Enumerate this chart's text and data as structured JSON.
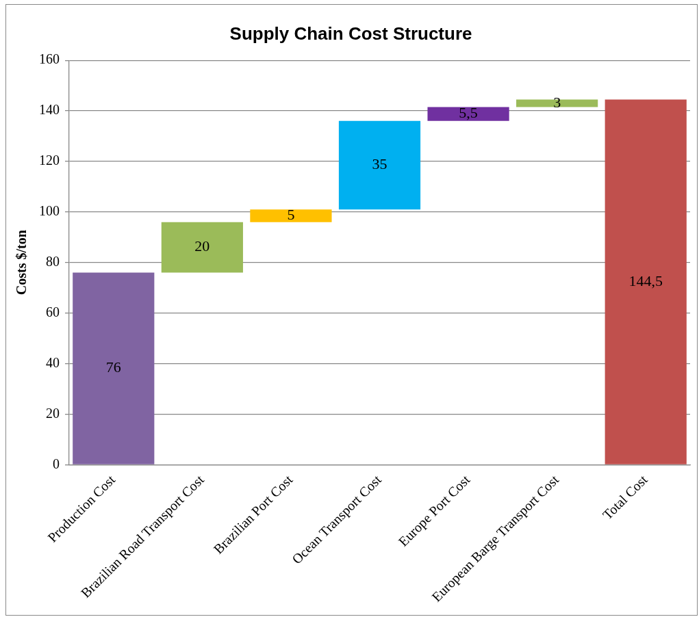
{
  "chart_data": {
    "type": "bar",
    "title": "Supply Chain Cost Structure",
    "ylabel": "Costs $/ton",
    "categories": [
      "Production Cost",
      "Brazilian Road Transport Cost",
      "Brazilian Port Cost",
      "Ocean Transport Cost",
      "Europe Port Cost",
      "European Barge Transport Cost",
      "Total Cost"
    ],
    "values": [
      76,
      20,
      5,
      35,
      5.5,
      3,
      144.5
    ],
    "base": [
      0,
      76,
      96,
      101,
      136,
      141.5,
      0
    ],
    "colors": [
      "#8064a2",
      "#9bbb59",
      "#ffc000",
      "#00b0f0",
      "#7030a0",
      "#9bbb59",
      "#c0504d"
    ],
    "value_labels": [
      "76",
      "20",
      "5",
      "35",
      "5,5",
      "3",
      "144,5"
    ],
    "ylim": [
      0,
      160
    ],
    "yticks": [
      0,
      20,
      40,
      60,
      80,
      100,
      120,
      140,
      160
    ],
    "grid": "y",
    "legend": false
  }
}
